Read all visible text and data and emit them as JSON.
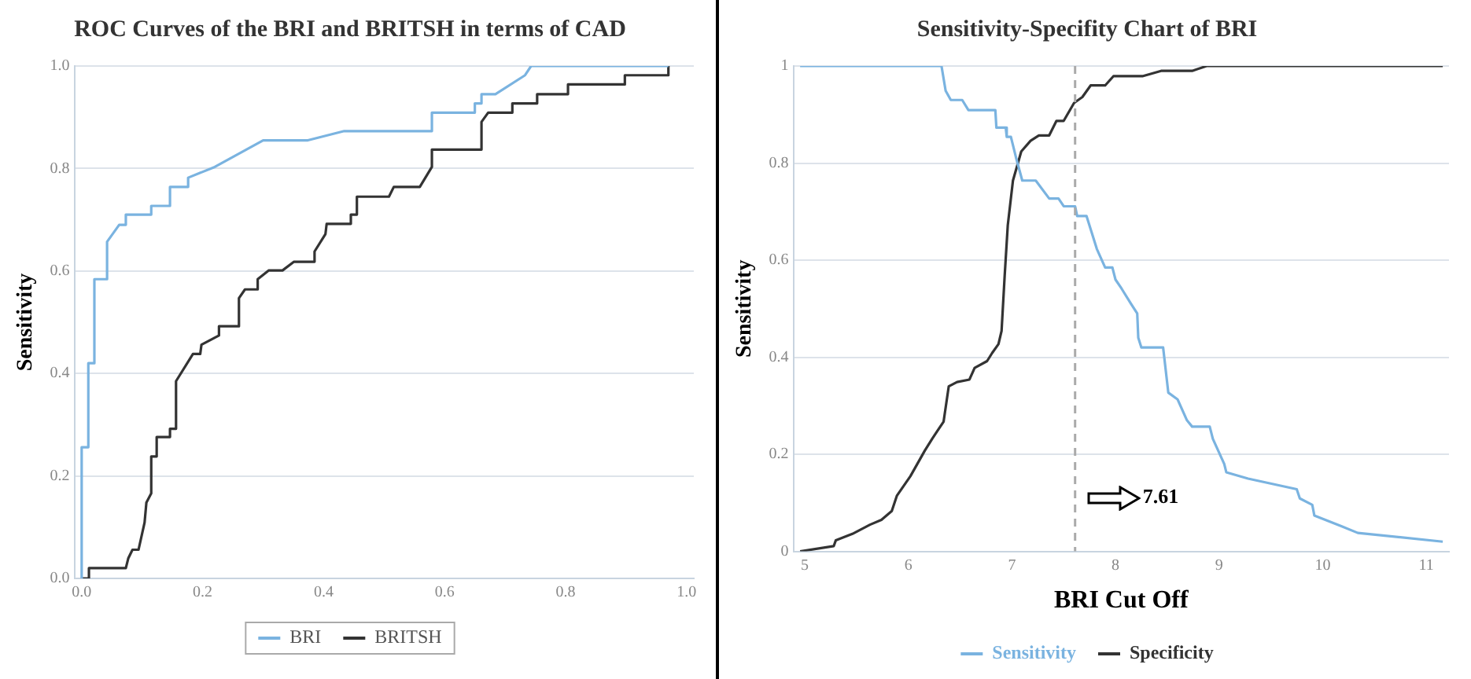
{
  "chart_data": [
    {
      "type": "line",
      "title": "ROC Curves of the BRI and BRITSH in terms of CAD",
      "ylabel": "Sensitivity",
      "xlim": [
        -0.012,
        1.012
      ],
      "ylim": [
        0,
        1
      ],
      "xticks": [
        {
          "value": 0,
          "label": "0.0"
        },
        {
          "value": 0.2,
          "label": "0.2"
        },
        {
          "value": 0.4,
          "label": "0.4"
        },
        {
          "value": 0.6,
          "label": "0.6"
        },
        {
          "value": 0.8,
          "label": "0.8"
        },
        {
          "value": 1,
          "label": "1.0"
        }
      ],
      "yticks": [
        {
          "value": 0,
          "label": "0.0"
        },
        {
          "value": 0.2,
          "label": "0.2"
        },
        {
          "value": 0.4,
          "label": "0.4"
        },
        {
          "value": 0.6,
          "label": "0.6"
        },
        {
          "value": 0.8,
          "label": "0.8"
        },
        {
          "value": 1,
          "label": "1.0"
        }
      ],
      "grid": "y",
      "legend": "bottom",
      "marker": "none",
      "line_style": "solid",
      "series": [
        {
          "name": "BRI",
          "color": "#7ab3e0",
          "x": [
            0,
            0,
            0.011,
            0.011,
            0.021,
            0.021,
            0.042,
            0.042,
            0.062,
            0.073,
            0.073,
            0.115,
            0.115,
            0.146,
            0.146,
            0.176,
            0.176,
            0.22,
            0.3,
            0.374,
            0.434,
            0.579,
            0.579,
            0.65,
            0.65,
            0.661,
            0.661,
            0.684,
            0.733,
            0.743,
            0.97
          ],
          "values": [
            0,
            0.256,
            0.256,
            0.42,
            0.42,
            0.584,
            0.584,
            0.657,
            0.69,
            0.69,
            0.71,
            0.71,
            0.727,
            0.727,
            0.764,
            0.764,
            0.782,
            0.803,
            0.855,
            0.855,
            0.873,
            0.873,
            0.909,
            0.909,
            0.927,
            0.927,
            0.945,
            0.945,
            0.982,
            1,
            1
          ]
        },
        {
          "name": "BRITSH",
          "color": "#333333",
          "x": [
            0,
            0.012,
            0.012,
            0.073,
            0.077,
            0.084,
            0.094,
            0.104,
            0.107,
            0.115,
            0.115,
            0.124,
            0.124,
            0.146,
            0.146,
            0.156,
            0.156,
            0.184,
            0.196,
            0.198,
            0.227,
            0.227,
            0.26,
            0.26,
            0.27,
            0.29,
            0.291,
            0.309,
            0.332,
            0.351,
            0.385,
            0.385,
            0.403,
            0.405,
            0.445,
            0.445,
            0.455,
            0.455,
            0.508,
            0.516,
            0.559,
            0.579,
            0.579,
            0.661,
            0.661,
            0.672,
            0.712,
            0.712,
            0.753,
            0.753,
            0.804,
            0.804,
            0.898,
            0.898,
            0.97,
            0.97
          ],
          "values": [
            0,
            0,
            0.02,
            0.02,
            0.039,
            0.056,
            0.056,
            0.109,
            0.148,
            0.166,
            0.238,
            0.238,
            0.276,
            0.276,
            0.292,
            0.292,
            0.385,
            0.438,
            0.438,
            0.456,
            0.474,
            0.492,
            0.492,
            0.547,
            0.564,
            0.564,
            0.584,
            0.601,
            0.601,
            0.618,
            0.618,
            0.638,
            0.672,
            0.692,
            0.692,
            0.71,
            0.71,
            0.745,
            0.745,
            0.764,
            0.764,
            0.803,
            0.837,
            0.837,
            0.891,
            0.909,
            0.909,
            0.927,
            0.927,
            0.945,
            0.945,
            0.964,
            0.964,
            0.982,
            0.982,
            1
          ]
        }
      ]
    },
    {
      "type": "line",
      "title": "Sensitivity-Specifity Chart of BRI",
      "xlabel": "BRI Cut Off",
      "ylabel": "Sensitivity",
      "xlim": [
        4.89,
        11.22
      ],
      "ylim": [
        0,
        1
      ],
      "xticks": [
        5,
        6,
        7,
        8,
        9,
        10,
        11
      ],
      "yticks": [
        0,
        0.2,
        0.4,
        0.6,
        0.8,
        1
      ],
      "grid": "y",
      "legend": "bottom",
      "marker": "none",
      "line_style": "solid",
      "ref_lines": [
        {
          "axis": "x",
          "value": 7.61,
          "color": "#aaaaaa",
          "line_style": "dashed"
        }
      ],
      "annotations": [
        "7.61"
      ],
      "series": [
        {
          "name": "Sensitivity",
          "color": "#7ab3e0",
          "x": [
            4.955,
            6.32,
            6.36,
            6.41,
            6.52,
            6.58,
            6.84,
            6.85,
            6.94,
            6.95,
            6.99,
            7.04,
            7.1,
            7.23,
            7.36,
            7.45,
            7.5,
            7.61,
            7.63,
            7.72,
            7.82,
            7.9,
            7.97,
            8,
            8.06,
            8.15,
            8.21,
            8.22,
            8.25,
            8.46,
            8.51,
            8.6,
            8.69,
            8.74,
            8.91,
            8.94,
            9.05,
            9.07,
            9.28,
            9.75,
            9.78,
            9.9,
            9.92,
            10.18,
            10.34,
            11.16
          ],
          "values": [
            1,
            1,
            0.949,
            0.93,
            0.93,
            0.909,
            0.909,
            0.873,
            0.873,
            0.854,
            0.854,
            0.811,
            0.764,
            0.764,
            0.727,
            0.727,
            0.711,
            0.711,
            0.691,
            0.691,
            0.623,
            0.585,
            0.585,
            0.56,
            0.541,
            0.51,
            0.49,
            0.44,
            0.42,
            0.42,
            0.327,
            0.313,
            0.27,
            0.257,
            0.257,
            0.232,
            0.18,
            0.163,
            0.15,
            0.128,
            0.109,
            0.096,
            0.074,
            0.052,
            0.038,
            0.02
          ]
        },
        {
          "name": "Specificity",
          "color": "#333333",
          "x": [
            4.955,
            5.28,
            5.3,
            5.46,
            5.63,
            5.74,
            5.84,
            5.89,
            6.02,
            6.16,
            6.23,
            6.28,
            6.34,
            6.39,
            6.47,
            6.59,
            6.64,
            6.76,
            6.81,
            6.87,
            6.9,
            6.93,
            6.96,
            7.01,
            7.09,
            7.18,
            7.26,
            7.36,
            7.43,
            7.5,
            7.6,
            7.68,
            7.76,
            7.9,
            7.98,
            8.26,
            8.44,
            8.74,
            8.88,
            11.16
          ],
          "values": [
            0,
            0.011,
            0.023,
            0.036,
            0.055,
            0.065,
            0.083,
            0.115,
            0.155,
            0.208,
            0.232,
            0.248,
            0.267,
            0.34,
            0.349,
            0.354,
            0.378,
            0.392,
            0.409,
            0.427,
            0.454,
            0.568,
            0.672,
            0.764,
            0.824,
            0.846,
            0.857,
            0.857,
            0.887,
            0.887,
            0.924,
            0.936,
            0.96,
            0.96,
            0.979,
            0.979,
            0.99,
            0.99,
            1,
            1
          ]
        }
      ]
    }
  ]
}
